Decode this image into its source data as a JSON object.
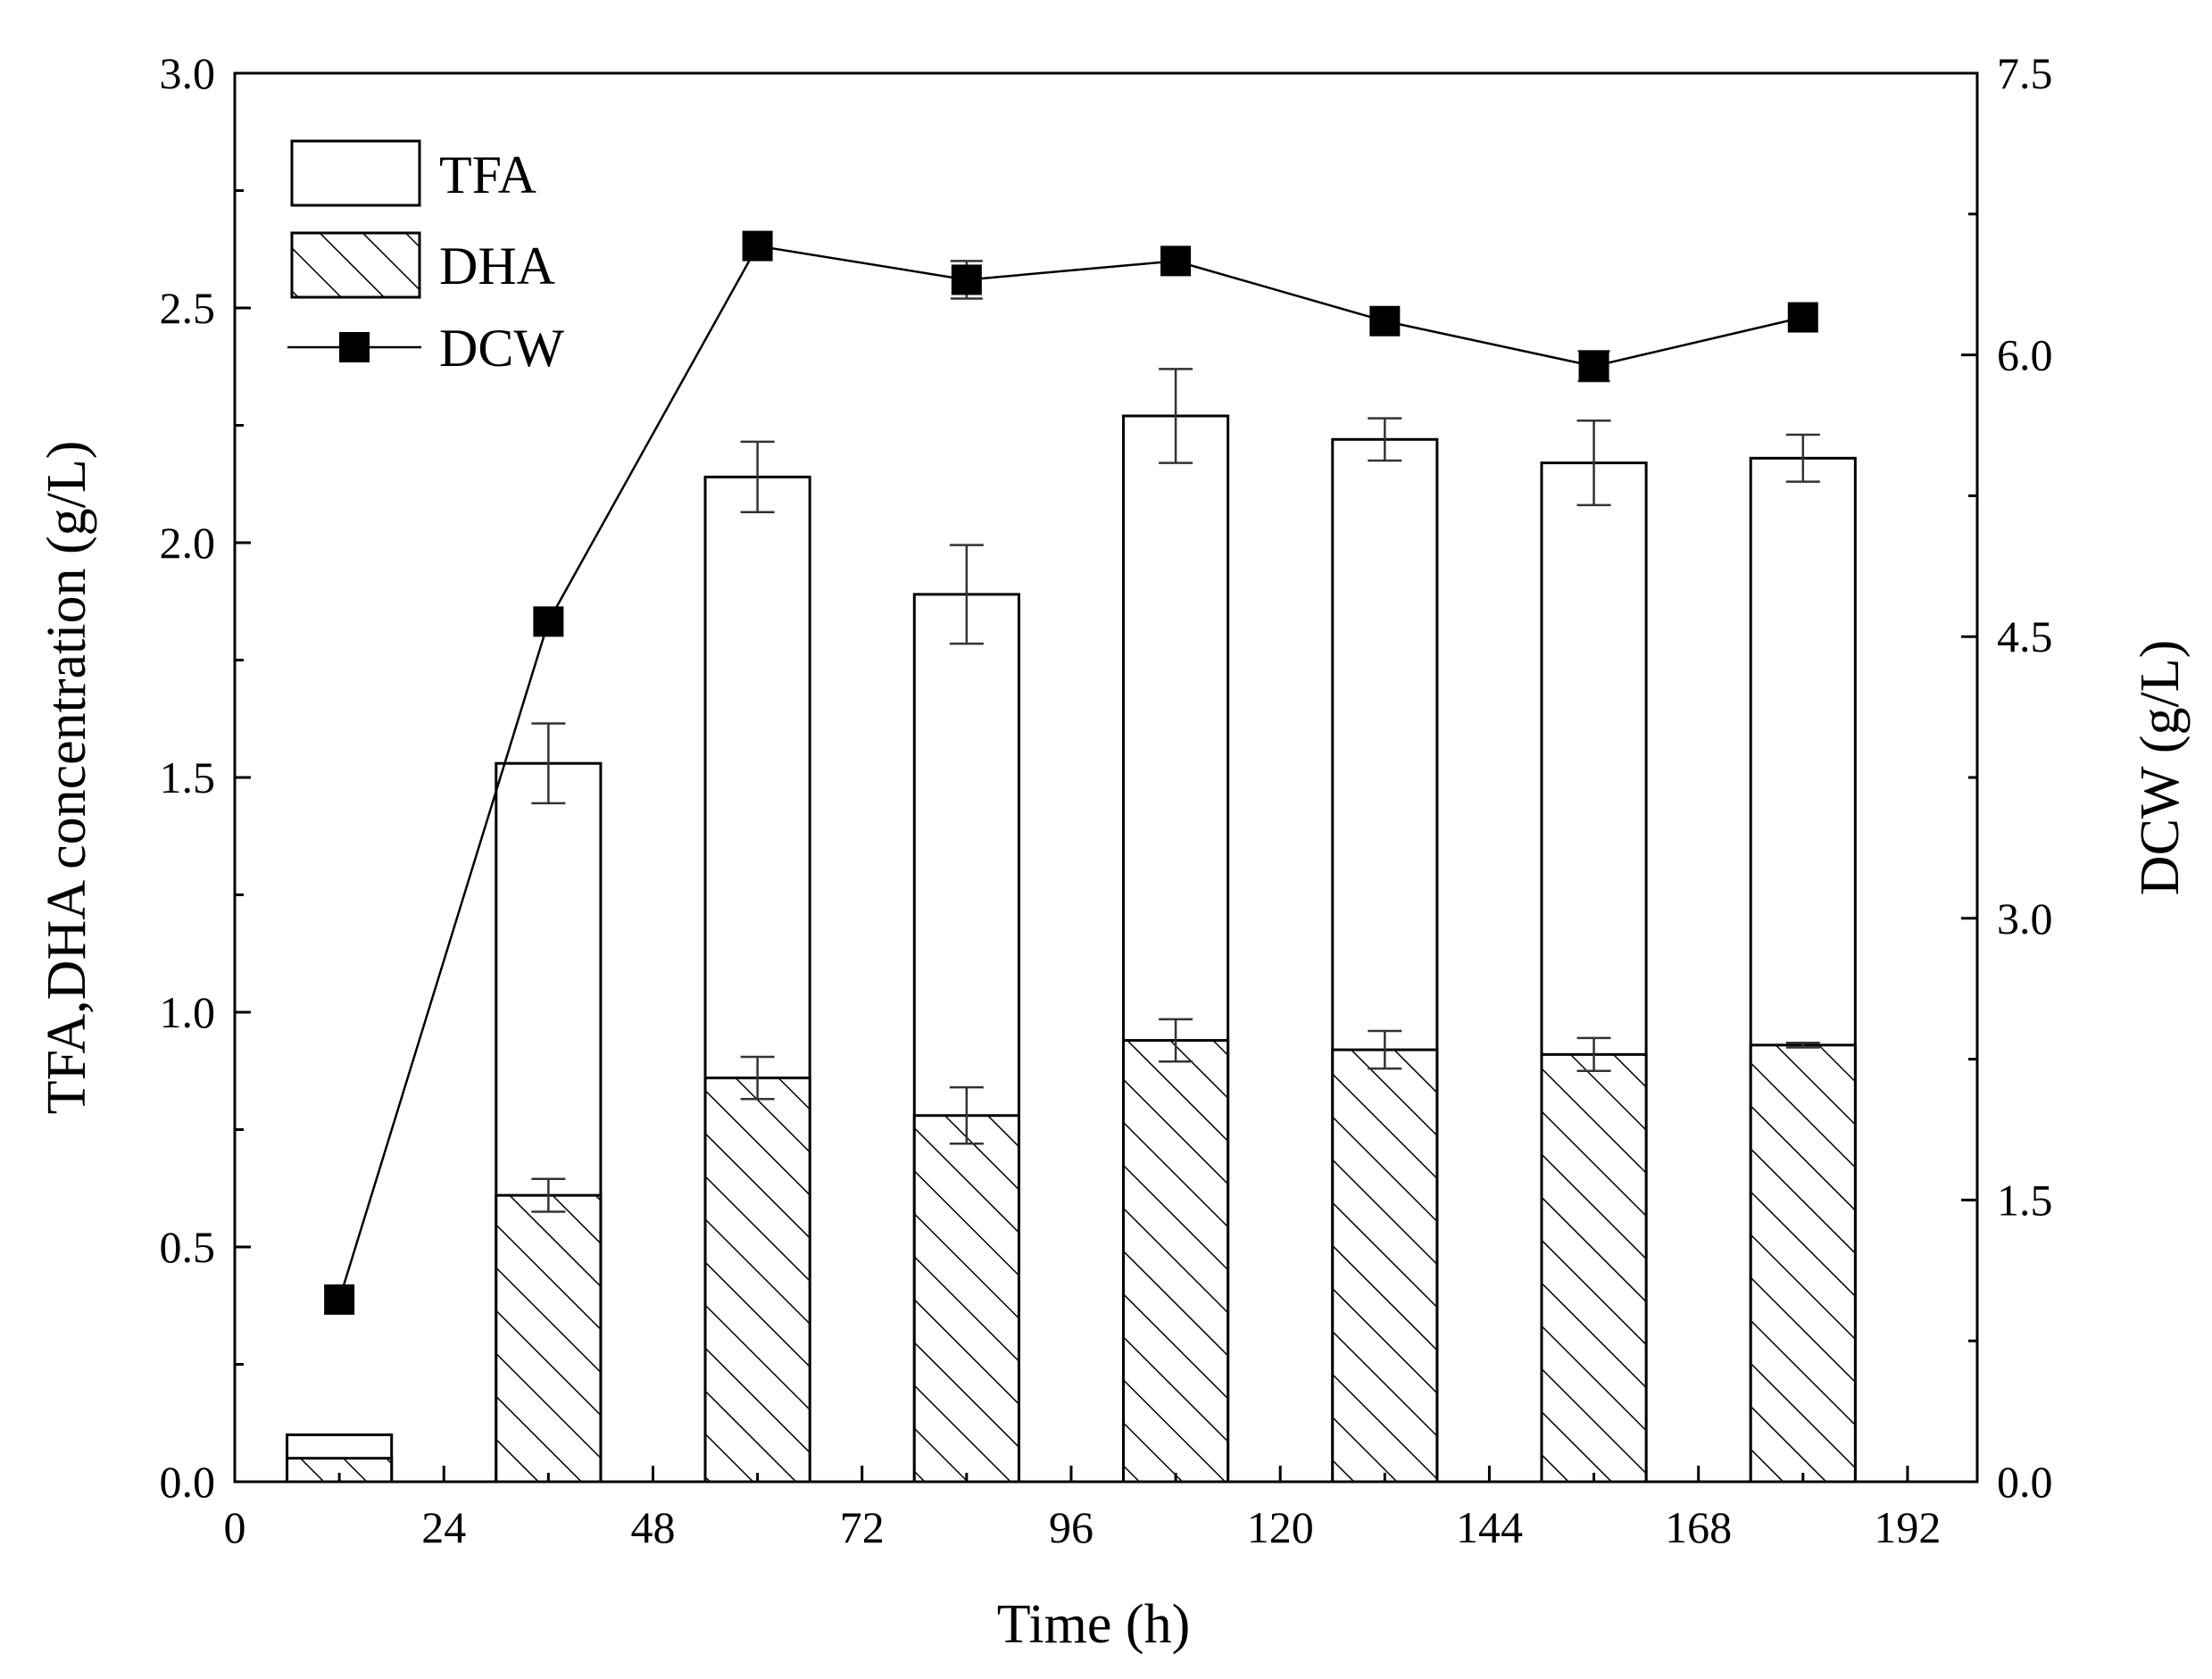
{
  "chart_data": {
    "type": "bar",
    "x": [
      12,
      36,
      60,
      84,
      108,
      132,
      156,
      180
    ],
    "series": [
      {
        "name": "TFA",
        "kind": "bar",
        "axis": "left",
        "values": [
          0.1,
          1.53,
          2.14,
          1.89,
          2.27,
          2.22,
          2.17,
          2.18
        ],
        "errors": [
          0.0,
          0.085,
          0.075,
          0.105,
          0.1,
          0.045,
          0.09,
          0.05
        ]
      },
      {
        "name": "DHA",
        "kind": "bar",
        "axis": "left",
        "values": [
          0.05,
          0.61,
          0.86,
          0.78,
          0.94,
          0.92,
          0.91,
          0.93
        ],
        "errors": [
          0.0,
          0.035,
          0.045,
          0.06,
          0.045,
          0.04,
          0.035,
          0.005
        ]
      },
      {
        "name": "DCW",
        "kind": "line",
        "axis": "right",
        "values": [
          0.97,
          4.58,
          6.58,
          6.4,
          6.5,
          6.18,
          5.94,
          6.2
        ],
        "errors": [
          0.0,
          0.0,
          0.0,
          0.1,
          0.0,
          0.0,
          0.08,
          0.0
        ]
      }
    ],
    "xlabel": "Time (h)",
    "ylabel": "TFA,DHA concentration (g/L)",
    "y2label": "DCW (g/L)",
    "xlim": [
      0,
      200
    ],
    "ylim": [
      0,
      3.0
    ],
    "y2lim": [
      0,
      7.5
    ],
    "xticks": [
      "0",
      "24",
      "48",
      "72",
      "96",
      "120",
      "144",
      "168",
      "192"
    ],
    "yticks": [
      "0.0",
      "0.5",
      "1.0",
      "1.5",
      "2.0",
      "2.5",
      "3.0"
    ],
    "y2ticks": [
      "0.0",
      "1.5",
      "3.0",
      "4.5",
      "6.0",
      "7.5"
    ],
    "legend": [
      "TFA",
      "DHA",
      "DCW"
    ],
    "legend_position": "top-left",
    "grid": false
  }
}
